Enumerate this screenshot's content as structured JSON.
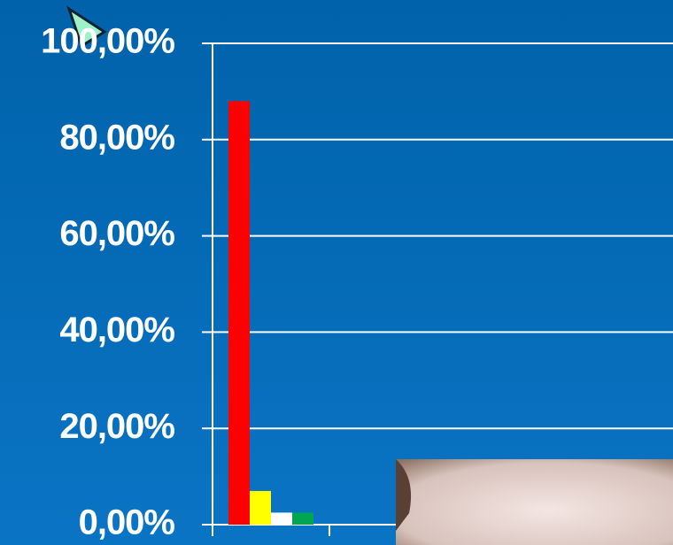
{
  "chart_data": {
    "type": "bar",
    "categories": [
      null
    ],
    "series": [
      {
        "color": "#ff0000",
        "values": [
          88
        ]
      },
      {
        "color": "#ffff00",
        "values": [
          7
        ]
      },
      {
        "color": "#ffffff",
        "values": [
          2.5
        ]
      },
      {
        "color": "#00a650",
        "values": [
          2.5
        ]
      }
    ],
    "ylim": [
      0,
      100
    ],
    "yticks": [
      {
        "value": 0,
        "label": "0,00%"
      },
      {
        "value": 20,
        "label": "20,00%"
      },
      {
        "value": 40,
        "label": "40,00%"
      },
      {
        "value": 60,
        "label": "60,00%"
      },
      {
        "value": 80,
        "label": "80,00%"
      },
      {
        "value": 100,
        "label": "100,00%"
      }
    ],
    "grid": true
  }
}
